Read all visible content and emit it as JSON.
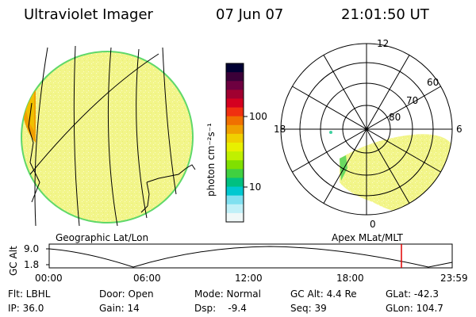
{
  "header": {
    "instrument": "Ultraviolet Imager",
    "date": "07 Jun 07",
    "time": "21:01:50 UT"
  },
  "left_panel": {
    "label": "Geographic Lat/Lon"
  },
  "right_panel": {
    "label": "Apex MLat/MLT",
    "mlt_labels": [
      "12",
      "18",
      "6",
      "0"
    ],
    "mlat_labels": [
      "60",
      "70",
      "80"
    ]
  },
  "colorbar": {
    "unit_label": "photon cm⁻²s⁻¹",
    "ticks": [
      "100",
      "10"
    ],
    "colors": [
      "#000033",
      "#3b0038",
      "#6e0040",
      "#a00030",
      "#d40020",
      "#f03010",
      "#f07000",
      "#f0a000",
      "#f0d000",
      "#e8f000",
      "#c0f000",
      "#80e000",
      "#40d040",
      "#00c080",
      "#00c8d0",
      "#80e0f0",
      "#c0f0f8",
      "#f0f8f8"
    ]
  },
  "timeline": {
    "axis_label": "GC Alt",
    "y_ticks": [
      "9.0",
      "1.8"
    ],
    "x_ticks": [
      "00:00",
      "06:00",
      "12:00",
      "18:00",
      "23:59"
    ],
    "marker_color": "#e00000"
  },
  "footer": {
    "row1": {
      "flt": "Flt: LBHL",
      "door": "Door: Open",
      "mode": "Mode: Normal",
      "gcalt": "GC Alt: 4.4 Re",
      "glat": "GLat: -42.3"
    },
    "row2": {
      "ip": "IP: 36.0",
      "gain": "Gain: 14",
      "dsp": "Dsp:    -9.4",
      "seq": "Seq: 39",
      "glon": "GLon: 104.7"
    }
  }
}
